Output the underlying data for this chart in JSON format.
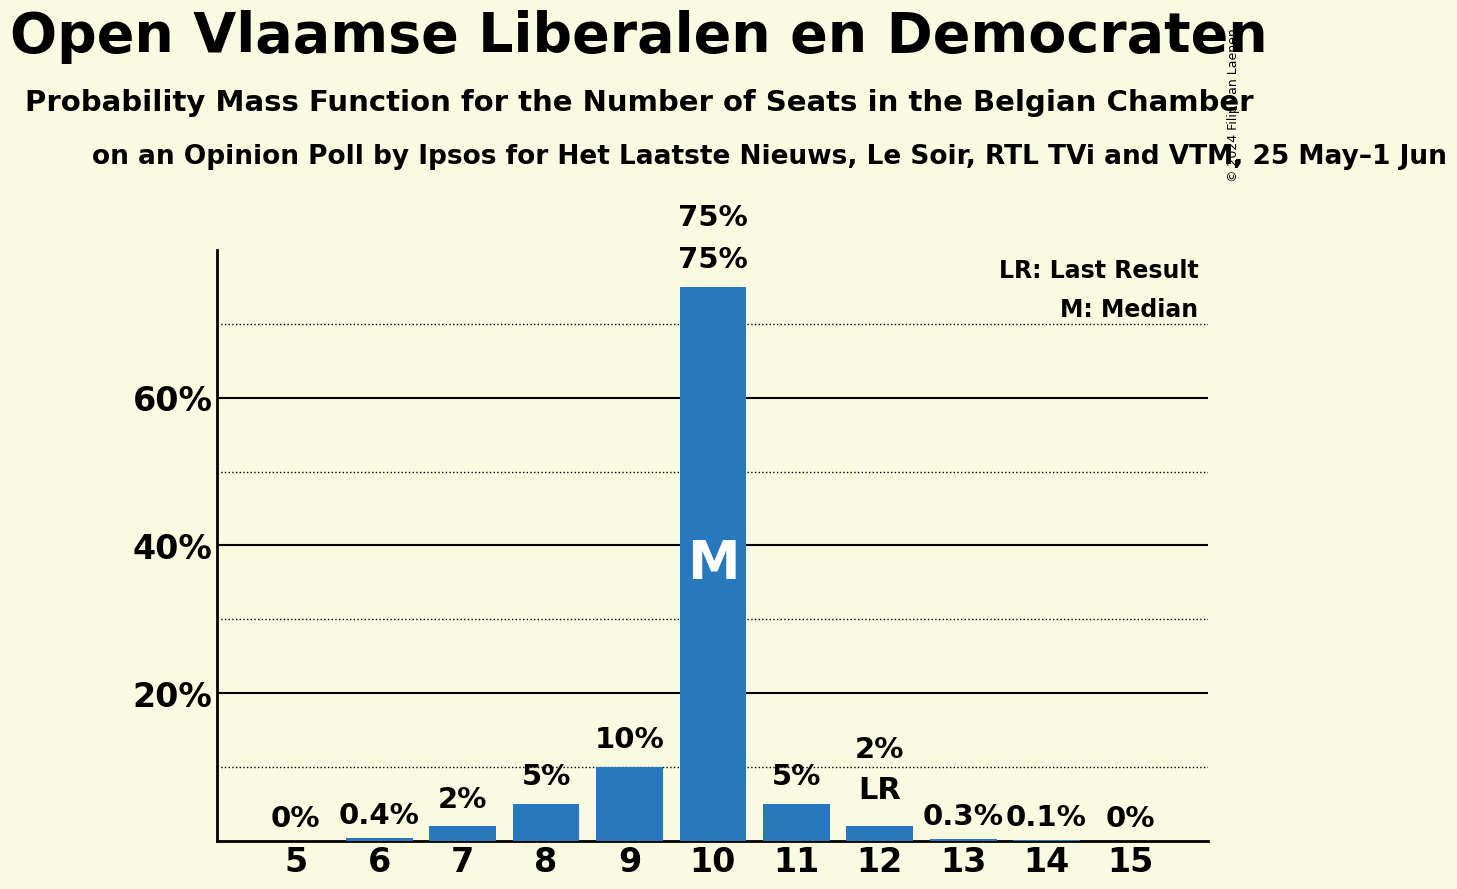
{
  "title": "Open Vlaamse Liberalen en Democraten",
  "subtitle": "Probability Mass Function for the Number of Seats in the Belgian Chamber",
  "subtitle2": "on an Opinion Poll by Ipsos for Het Laatste Nieuws, Le Soir, RTL TVi and VTM, 25 May–1 Jun",
  "copyright": "© 2024 Filip van Laenen",
  "categories": [
    5,
    6,
    7,
    8,
    9,
    10,
    11,
    12,
    13,
    14,
    15
  ],
  "values": [
    0.0,
    0.4,
    2.0,
    5.0,
    10.0,
    75.0,
    5.0,
    2.0,
    0.3,
    0.1,
    0.0
  ],
  "bar_color": "#2878BE",
  "background_color": "#FAFAE0",
  "ylim": [
    0,
    80
  ],
  "yticks": [
    20,
    40,
    60
  ],
  "dotted_lines": [
    10,
    30,
    50,
    70
  ],
  "solid_lines": [
    20,
    40,
    60
  ],
  "median_bar": 10,
  "last_result_bar": 12,
  "value_labels": [
    "0%",
    "0.4%",
    "2%",
    "5%",
    "10%",
    "75%",
    "5%",
    "2%",
    "0.3%",
    "0.1%",
    "0%"
  ],
  "lr_label": "LR: Last Result",
  "m_label": "M: Median",
  "legend_fontsize": 17,
  "title_fontsize": 40,
  "subtitle_fontsize": 21,
  "subtitle2_fontsize": 19,
  "ylabel_fontsize": 24,
  "xlabel_fontsize": 24,
  "bar_label_fontsize": 21,
  "median_label_fontsize": 38,
  "lr_above_fontsize": 22
}
